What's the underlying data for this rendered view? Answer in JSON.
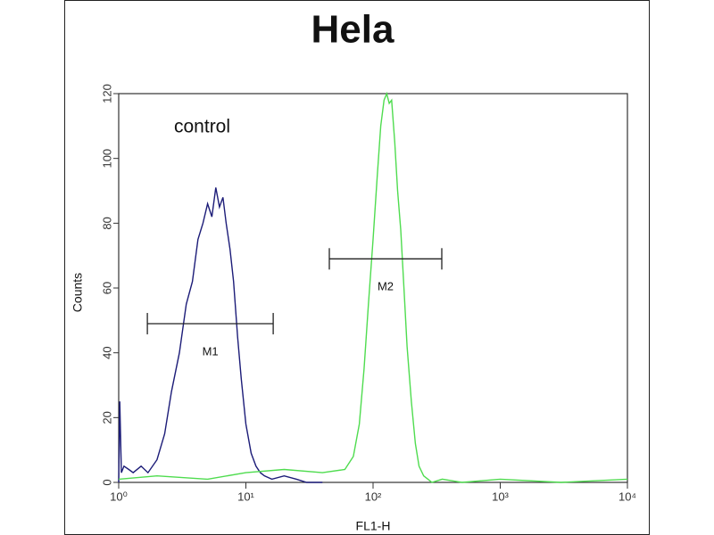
{
  "chart_data": {
    "type": "histogram-line",
    "title": "Hela",
    "x_label": "FL1-H",
    "y_label": "Counts",
    "x_scale": "log",
    "xlim": [
      1,
      10000
    ],
    "ylim": [
      0,
      120
    ],
    "xticks": [
      {
        "value": 1,
        "label": "10⁰"
      },
      {
        "value": 10,
        "label": "10¹"
      },
      {
        "value": 100,
        "label": "10²"
      },
      {
        "value": 1000,
        "label": "10³"
      },
      {
        "value": 10000,
        "label": "10⁴"
      }
    ],
    "yticks": [
      0,
      20,
      40,
      60,
      80,
      100,
      120
    ],
    "series": [
      {
        "name": "control",
        "color": "#1c1c78",
        "x": [
          1,
          1.02,
          1.05,
          1.1,
          1.2,
          1.3,
          1.5,
          1.7,
          2.0,
          2.3,
          2.6,
          3.0,
          3.4,
          3.8,
          4.2,
          4.6,
          5.0,
          5.4,
          5.8,
          6.2,
          6.6,
          7.0,
          7.5,
          8.0,
          8.6,
          9.2,
          10,
          11,
          12,
          13,
          14,
          16,
          20,
          25,
          30,
          40
        ],
        "values": [
          0,
          25,
          3,
          5,
          4,
          3,
          5,
          3,
          7,
          15,
          28,
          40,
          55,
          62,
          75,
          80,
          86,
          82,
          91,
          85,
          88,
          80,
          72,
          62,
          45,
          32,
          18,
          9,
          5,
          3,
          2,
          1,
          2,
          1,
          0,
          0
        ]
      },
      {
        "color": "#4fdc4f",
        "x": [
          1,
          2,
          5,
          10,
          20,
          40,
          60,
          70,
          78,
          85,
          92,
          100,
          108,
          115,
          122,
          128,
          134,
          140,
          148,
          156,
          165,
          175,
          185,
          200,
          215,
          230,
          250,
          270,
          290,
          350,
          500,
          1000,
          3000,
          10000
        ],
        "values": [
          1,
          2,
          1,
          3,
          4,
          3,
          4,
          8,
          18,
          35,
          55,
          75,
          95,
          110,
          118,
          120,
          117,
          118,
          105,
          90,
          78,
          60,
          42,
          25,
          12,
          5,
          2,
          1,
          0,
          1,
          0,
          1,
          0,
          1
        ]
      }
    ],
    "markers": [
      {
        "label": "M1",
        "x": [
          1.68,
          16.4
        ],
        "y": 49
      },
      {
        "label": "M2",
        "x": [
          45.3,
          347
        ],
        "y": 69
      }
    ]
  }
}
